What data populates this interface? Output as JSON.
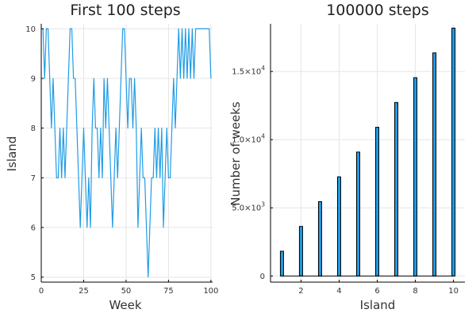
{
  "chart_data": [
    {
      "type": "line",
      "title": "First 100 steps",
      "xlabel": "Week",
      "ylabel": "Island",
      "xlim": [
        0,
        101
      ],
      "ylim": [
        4.9,
        10.1
      ],
      "x_ticks": [
        0,
        25,
        50,
        75,
        100
      ],
      "y_ticks": [
        5,
        6,
        7,
        8,
        9,
        10
      ],
      "grid": true,
      "legend": "none",
      "color": "#1f9ce6",
      "series": [
        {
          "x": [
            1,
            2,
            3,
            4,
            5,
            6,
            7,
            8,
            9,
            10,
            11,
            12,
            13,
            14,
            15,
            16,
            17,
            18,
            19,
            20,
            21,
            22,
            23,
            24,
            25,
            26,
            27,
            28,
            29,
            30,
            31,
            32,
            33,
            34,
            35,
            36,
            37,
            38,
            39,
            40,
            41,
            42,
            43,
            44,
            45,
            46,
            47,
            48,
            49,
            50,
            51,
            52,
            53,
            54,
            55,
            56,
            57,
            58,
            59,
            60,
            61,
            62,
            63,
            64,
            65,
            66,
            67,
            68,
            69,
            70,
            71,
            72,
            73,
            74,
            75,
            76,
            77,
            78,
            79,
            80,
            81,
            82,
            83,
            84,
            85,
            86,
            87,
            88,
            89,
            90,
            91,
            92,
            93,
            94,
            95,
            96,
            97,
            98,
            99,
            100
          ],
          "y": [
            10,
            9,
            10,
            10,
            9,
            8,
            9,
            8,
            7,
            7,
            8,
            7,
            8,
            7,
            8,
            9,
            10,
            10,
            9,
            9,
            8,
            7,
            6,
            7,
            8,
            7,
            6,
            7,
            6,
            8,
            9,
            8,
            8,
            7,
            8,
            7,
            9,
            8,
            9,
            8,
            7,
            6,
            7,
            8,
            7,
            8,
            9,
            10,
            10,
            9,
            8,
            9,
            9,
            8,
            9,
            8,
            6,
            7,
            8,
            7,
            7,
            6,
            5,
            6,
            7,
            7,
            8,
            7,
            8,
            7,
            8,
            6,
            7,
            8,
            7,
            7,
            8,
            9,
            8,
            9,
            10,
            9,
            10,
            9,
            10,
            9,
            10,
            9,
            10,
            9,
            10,
            10,
            10,
            10,
            10,
            10,
            10,
            10,
            10,
            9
          ]
        }
      ]
    },
    {
      "type": "bar",
      "title": "100000 steps",
      "xlabel": "Island",
      "ylabel": "Number of weeks",
      "categories": [
        1,
        2,
        3,
        4,
        5,
        6,
        7,
        8,
        9,
        10
      ],
      "values": [
        1818,
        3636,
        5455,
        7273,
        9091,
        10909,
        12727,
        14545,
        16364,
        18182
      ],
      "xlim": [
        0.4,
        10.6
      ],
      "ylim": [
        -450,
        18500
      ],
      "x_ticks": [
        2,
        4,
        6,
        8,
        10
      ],
      "y_ticks": [
        0,
        5000,
        10000,
        15000
      ],
      "y_tick_labels": [
        {
          "base": "0",
          "exp": ""
        },
        {
          "base": "5.0×10",
          "exp": "3"
        },
        {
          "base": "1.0×10",
          "exp": "4"
        },
        {
          "base": "1.5×10",
          "exp": "4"
        }
      ],
      "grid": true,
      "legend": "none",
      "color": "#1f9ce6",
      "edge_color": "#000000"
    }
  ]
}
